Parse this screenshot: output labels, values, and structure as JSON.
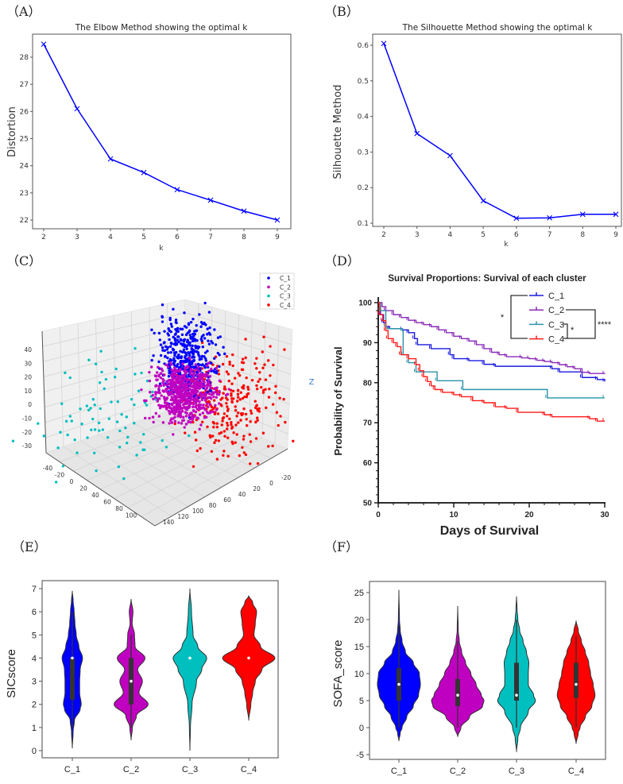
{
  "panels": {
    "A": "（A）",
    "B": "（B）",
    "C": "（C）",
    "D": "（D）",
    "E": "（E）",
    "F": "（F）"
  },
  "chart_data": [
    {
      "id": "A",
      "type": "line",
      "title": "The Elbow Method showing the optimal k",
      "xlabel": "k",
      "ylabel": "Distortion",
      "x": [
        2,
        3,
        4,
        5,
        6,
        7,
        8,
        9
      ],
      "y": [
        28.48,
        26.1,
        24.25,
        23.75,
        23.12,
        22.73,
        22.33,
        22.0
      ],
      "xticks": [
        2,
        3,
        4,
        5,
        6,
        7,
        8,
        9
      ],
      "yticks": [
        22,
        23,
        24,
        25,
        26,
        27,
        28
      ],
      "ylim": [
        21.7,
        28.9
      ],
      "color": "#0000ff",
      "marker": "x",
      "grid": false
    },
    {
      "id": "B",
      "type": "line",
      "title": "The Silhouette Method showing the optimal k",
      "xlabel": "k",
      "ylabel": "Silhouette Method",
      "x": [
        2,
        3,
        4,
        5,
        6,
        7,
        8,
        9
      ],
      "y": [
        0.605,
        0.352,
        0.29,
        0.163,
        0.114,
        0.115,
        0.125,
        0.125
      ],
      "xticks": [
        2,
        3,
        4,
        5,
        6,
        7,
        8,
        9
      ],
      "yticks": [
        0.1,
        0.2,
        0.3,
        0.4,
        0.5,
        0.6
      ],
      "ylim": [
        0.09,
        0.63
      ],
      "color": "#0000ff",
      "marker": "x",
      "grid": false
    },
    {
      "id": "C",
      "type": "scatter3d",
      "legend": [
        {
          "name": "C_1",
          "color": "#0000ff"
        },
        {
          "name": "C_2",
          "color": "#c000c0"
        },
        {
          "name": "C_3",
          "color": "#00bfbf"
        },
        {
          "name": "C_4",
          "color": "#ff0000"
        }
      ],
      "legend_position": "top-right",
      "zlabel": "Z",
      "zticks": [
        "40",
        "30",
        "20",
        "10",
        "0",
        "-10",
        "-20",
        "-30"
      ],
      "xticks": [
        "-40",
        "-20",
        "0",
        "20",
        "40",
        "60",
        "80",
        "100"
      ],
      "yticks": [
        "-20",
        "0",
        "20",
        "40",
        "60",
        "80",
        "100",
        "120",
        "140"
      ]
    },
    {
      "id": "D",
      "type": "line",
      "subtype": "kaplan-meier",
      "title": "Survival Proportions: Survival of each cluster",
      "xlabel": "Days of Survival",
      "ylabel": "Probability of Survival",
      "xlim": [
        0,
        30
      ],
      "ylim": [
        50,
        100
      ],
      "xticks": [
        0,
        10,
        20,
        30
      ],
      "yticks": [
        50,
        60,
        70,
        80,
        90,
        100
      ],
      "series": [
        {
          "name": "C_1",
          "color": "#1a1adf",
          "points": [
            [
              0,
              100
            ],
            [
              0.3,
              97
            ],
            [
              0.7,
              95
            ],
            [
              1,
              94
            ],
            [
              1.5,
              93.5
            ],
            [
              3.2,
              93.2
            ],
            [
              4,
              92.5
            ],
            [
              4.8,
              91
            ],
            [
              5.2,
              89.5
            ],
            [
              7,
              88.5
            ],
            [
              9.5,
              87
            ],
            [
              10,
              86
            ],
            [
              12,
              85.5
            ],
            [
              14,
              84.6
            ],
            [
              15.5,
              84.1
            ],
            [
              23,
              83.5
            ],
            [
              24,
              82.7
            ],
            [
              27,
              81.3
            ],
            [
              29,
              80.8
            ],
            [
              30,
              80.3
            ]
          ]
        },
        {
          "name": "C_2",
          "color": "#8a2ab8",
          "points": [
            [
              0,
              100
            ],
            [
              0.5,
              99
            ],
            [
              1,
              98
            ],
            [
              2,
              97
            ],
            [
              3,
              96.3
            ],
            [
              4,
              95.6
            ],
            [
              5,
              95
            ],
            [
              6,
              94.5
            ],
            [
              7,
              94
            ],
            [
              8,
              93.2
            ],
            [
              9,
              92.5
            ],
            [
              10,
              91.6
            ],
            [
              11,
              91
            ],
            [
              12,
              90.4
            ],
            [
              13,
              89.5
            ],
            [
              14,
              88.5
            ],
            [
              15,
              87.6
            ],
            [
              16,
              87
            ],
            [
              17,
              86.5
            ],
            [
              19,
              86.2
            ],
            [
              20,
              86
            ],
            [
              21,
              85.6
            ],
            [
              22,
              85.3
            ],
            [
              23,
              85
            ],
            [
              24,
              84.5
            ],
            [
              25,
              84
            ],
            [
              26,
              83.5
            ],
            [
              27,
              82.6
            ],
            [
              28,
              82.3
            ],
            [
              30,
              82.2
            ]
          ]
        },
        {
          "name": "C_3",
          "color": "#2a93a8",
          "points": [
            [
              0,
              100
            ],
            [
              0.3,
              98
            ],
            [
              1,
              94
            ],
            [
              1.2,
              93.5
            ],
            [
              3.2,
              93
            ],
            [
              3.3,
              87
            ],
            [
              4,
              85
            ],
            [
              5,
              82.7
            ],
            [
              7.8,
              80.5
            ],
            [
              11.2,
              78.3
            ],
            [
              22.4,
              76.2
            ],
            [
              30,
              76.2
            ]
          ]
        },
        {
          "name": "C_4",
          "color": "#ff1a1a",
          "points": [
            [
              0,
              100
            ],
            [
              0.2,
              97
            ],
            [
              0.6,
              95.5
            ],
            [
              1,
              93
            ],
            [
              1.3,
              91
            ],
            [
              2,
              90
            ],
            [
              2.5,
              89
            ],
            [
              3,
              87
            ],
            [
              4,
              86
            ],
            [
              5,
              84.5
            ],
            [
              5.5,
              83
            ],
            [
              6,
              81.5
            ],
            [
              6.5,
              80.3
            ],
            [
              7,
              79.2
            ],
            [
              7.5,
              78.3
            ],
            [
              8.5,
              77.6
            ],
            [
              10,
              77
            ],
            [
              11,
              76.5
            ],
            [
              12.5,
              75.5
            ],
            [
              14,
              75
            ],
            [
              15.5,
              74
            ],
            [
              17,
              73.6
            ],
            [
              18.5,
              72.6
            ],
            [
              22,
              72
            ],
            [
              23,
              71.5
            ],
            [
              28,
              71
            ],
            [
              29,
              70.4
            ],
            [
              30,
              70.4
            ]
          ]
        }
      ],
      "legend_position": "top-right",
      "significance": [
        {
          "pair": [
            "C_1",
            "C_4"
          ],
          "label": "*"
        },
        {
          "pair": [
            "C_2",
            "C_4"
          ],
          "label": "****"
        },
        {
          "pair": [
            "C_3",
            "C_4"
          ],
          "label": "*"
        }
      ]
    },
    {
      "id": "E",
      "type": "violin",
      "ylabel": "SICscore",
      "categories": [
        "C_1",
        "C_2",
        "C_3",
        "C_4"
      ],
      "ylim": [
        -0.3,
        7.3
      ],
      "yticks": [
        0,
        1,
        2,
        3,
        4,
        5,
        6,
        7
      ],
      "series": [
        {
          "name": "C_1",
          "color": "#0000ff",
          "density": [
            [
              0.1,
              0
            ],
            [
              0.8,
              0.03
            ],
            [
              1.3,
              0.08
            ],
            [
              1.8,
              0.3
            ],
            [
              2,
              0.34
            ],
            [
              2.5,
              0.28
            ],
            [
              3,
              0.28
            ],
            [
              3.5,
              0.3
            ],
            [
              4,
              0.39
            ],
            [
              4.5,
              0.25
            ],
            [
              5,
              0.15
            ],
            [
              5.5,
              0.1
            ],
            [
              6,
              0.07
            ],
            [
              6.5,
              0.03
            ],
            [
              6.9,
              0
            ]
          ],
          "box": {
            "whisker_low": 1,
            "q1": 2.2,
            "median": 4,
            "q3": 4,
            "whisker_high": 6
          }
        },
        {
          "name": "C_2",
          "color": "#c000c0",
          "density": [
            [
              0.45,
              0
            ],
            [
              1,
              0.05
            ],
            [
              1.5,
              0.2
            ],
            [
              2,
              0.65
            ],
            [
              2.5,
              0.3
            ],
            [
              3,
              0.43
            ],
            [
              3.5,
              0.25
            ],
            [
              4,
              0.53
            ],
            [
              4.5,
              0.15
            ],
            [
              5,
              0.13
            ],
            [
              5.5,
              0.04
            ],
            [
              6,
              0.07
            ],
            [
              6.55,
              0
            ]
          ],
          "box": {
            "whisker_low": 1,
            "q1": 2,
            "median": 3,
            "q3": 4,
            "whisker_high": 5
          }
        },
        {
          "name": "C_3",
          "color": "#00bfbf",
          "density": [
            [
              0,
              0
            ],
            [
              1,
              0.02
            ],
            [
              2,
              0.08
            ],
            [
              3,
              0.25
            ],
            [
              3.5,
              0.45
            ],
            [
              4,
              0.64
            ],
            [
              4.5,
              0.3
            ],
            [
              5,
              0.12
            ],
            [
              6,
              0.06
            ],
            [
              7,
              0
            ]
          ],
          "box": {
            "whisker_low": 4,
            "q1": 4,
            "median": 4,
            "q3": 4,
            "whisker_high": 4
          }
        },
        {
          "name": "C_4",
          "color": "#ff0000",
          "density": [
            [
              1.3,
              0
            ],
            [
              2,
              0.08
            ],
            [
              2.5,
              0.15
            ],
            [
              3,
              0.25
            ],
            [
              3.5,
              0.5
            ],
            [
              4,
              1.0
            ],
            [
              4.5,
              0.45
            ],
            [
              5,
              0.2
            ],
            [
              5.5,
              0.25
            ],
            [
              6,
              0.3
            ],
            [
              6.4,
              0.15
            ],
            [
              6.7,
              0
            ]
          ],
          "box": {
            "whisker_low": 4,
            "q1": 4,
            "median": 4,
            "q3": 4,
            "whisker_high": 4
          }
        }
      ]
    },
    {
      "id": "F",
      "type": "violin",
      "ylabel": "SOFA_score",
      "categories": [
        "C_1",
        "C_2",
        "C_3",
        "C_4"
      ],
      "ylim": [
        -6,
        27
      ],
      "yticks": [
        -5,
        0,
        5,
        10,
        15,
        20,
        25
      ],
      "series": [
        {
          "name": "C_1",
          "color": "#0000ff",
          "density": [
            [
              -2.5,
              0
            ],
            [
              -1,
              0.05
            ],
            [
              0,
              0.12
            ],
            [
              2,
              0.3
            ],
            [
              4,
              0.55
            ],
            [
              6,
              0.75
            ],
            [
              8,
              0.82
            ],
            [
              10,
              0.78
            ],
            [
              12,
              0.55
            ],
            [
              14,
              0.25
            ],
            [
              16,
              0.12
            ],
            [
              18,
              0.05
            ],
            [
              20,
              0.02
            ],
            [
              25.5,
              0
            ]
          ],
          "box": {
            "whisker_low": 0,
            "q1": 5,
            "median": 8,
            "q3": 11,
            "whisker_high": 19
          }
        },
        {
          "name": "C_2",
          "color": "#c000c0",
          "density": [
            [
              -1.7,
              0
            ],
            [
              0,
              0.12
            ],
            [
              2,
              0.45
            ],
            [
              4,
              0.95
            ],
            [
              5,
              1.0
            ],
            [
              6,
              0.9
            ],
            [
              8,
              0.7
            ],
            [
              10,
              0.5
            ],
            [
              12,
              0.3
            ],
            [
              14,
              0.15
            ],
            [
              16,
              0.06
            ],
            [
              18,
              0.02
            ],
            [
              22.5,
              0
            ]
          ],
          "box": {
            "whisker_low": 0,
            "q1": 4,
            "median": 6,
            "q3": 9,
            "whisker_high": 16
          }
        },
        {
          "name": "C_3",
          "color": "#00bfbf",
          "density": [
            [
              -4.5,
              0
            ],
            [
              -2,
              0.05
            ],
            [
              0,
              0.15
            ],
            [
              3,
              0.45
            ],
            [
              5,
              0.72
            ],
            [
              6,
              0.65
            ],
            [
              8,
              0.45
            ],
            [
              10,
              0.45
            ],
            [
              12,
              0.47
            ],
            [
              14,
              0.38
            ],
            [
              16,
              0.25
            ],
            [
              18,
              0.12
            ],
            [
              20,
              0.05
            ],
            [
              22,
              0.02
            ],
            [
              24.3,
              0
            ]
          ],
          "box": {
            "whisker_low": 0,
            "q1": 5,
            "median": 6,
            "q3": 12,
            "whisker_high": 20
          }
        },
        {
          "name": "C_4",
          "color": "#ff0000",
          "density": [
            [
              -3,
              0
            ],
            [
              -1,
              0.08
            ],
            [
              0,
              0.15
            ],
            [
              2,
              0.35
            ],
            [
              4,
              0.6
            ],
            [
              6,
              0.72
            ],
            [
              8,
              0.65
            ],
            [
              10,
              0.55
            ],
            [
              12,
              0.48
            ],
            [
              14,
              0.35
            ],
            [
              16,
              0.2
            ],
            [
              18,
              0.08
            ],
            [
              19.8,
              0
            ]
          ],
          "box": {
            "whisker_low": 0,
            "q1": 5.5,
            "median": 8,
            "q3": 12,
            "whisker_high": 17
          }
        }
      ]
    }
  ]
}
